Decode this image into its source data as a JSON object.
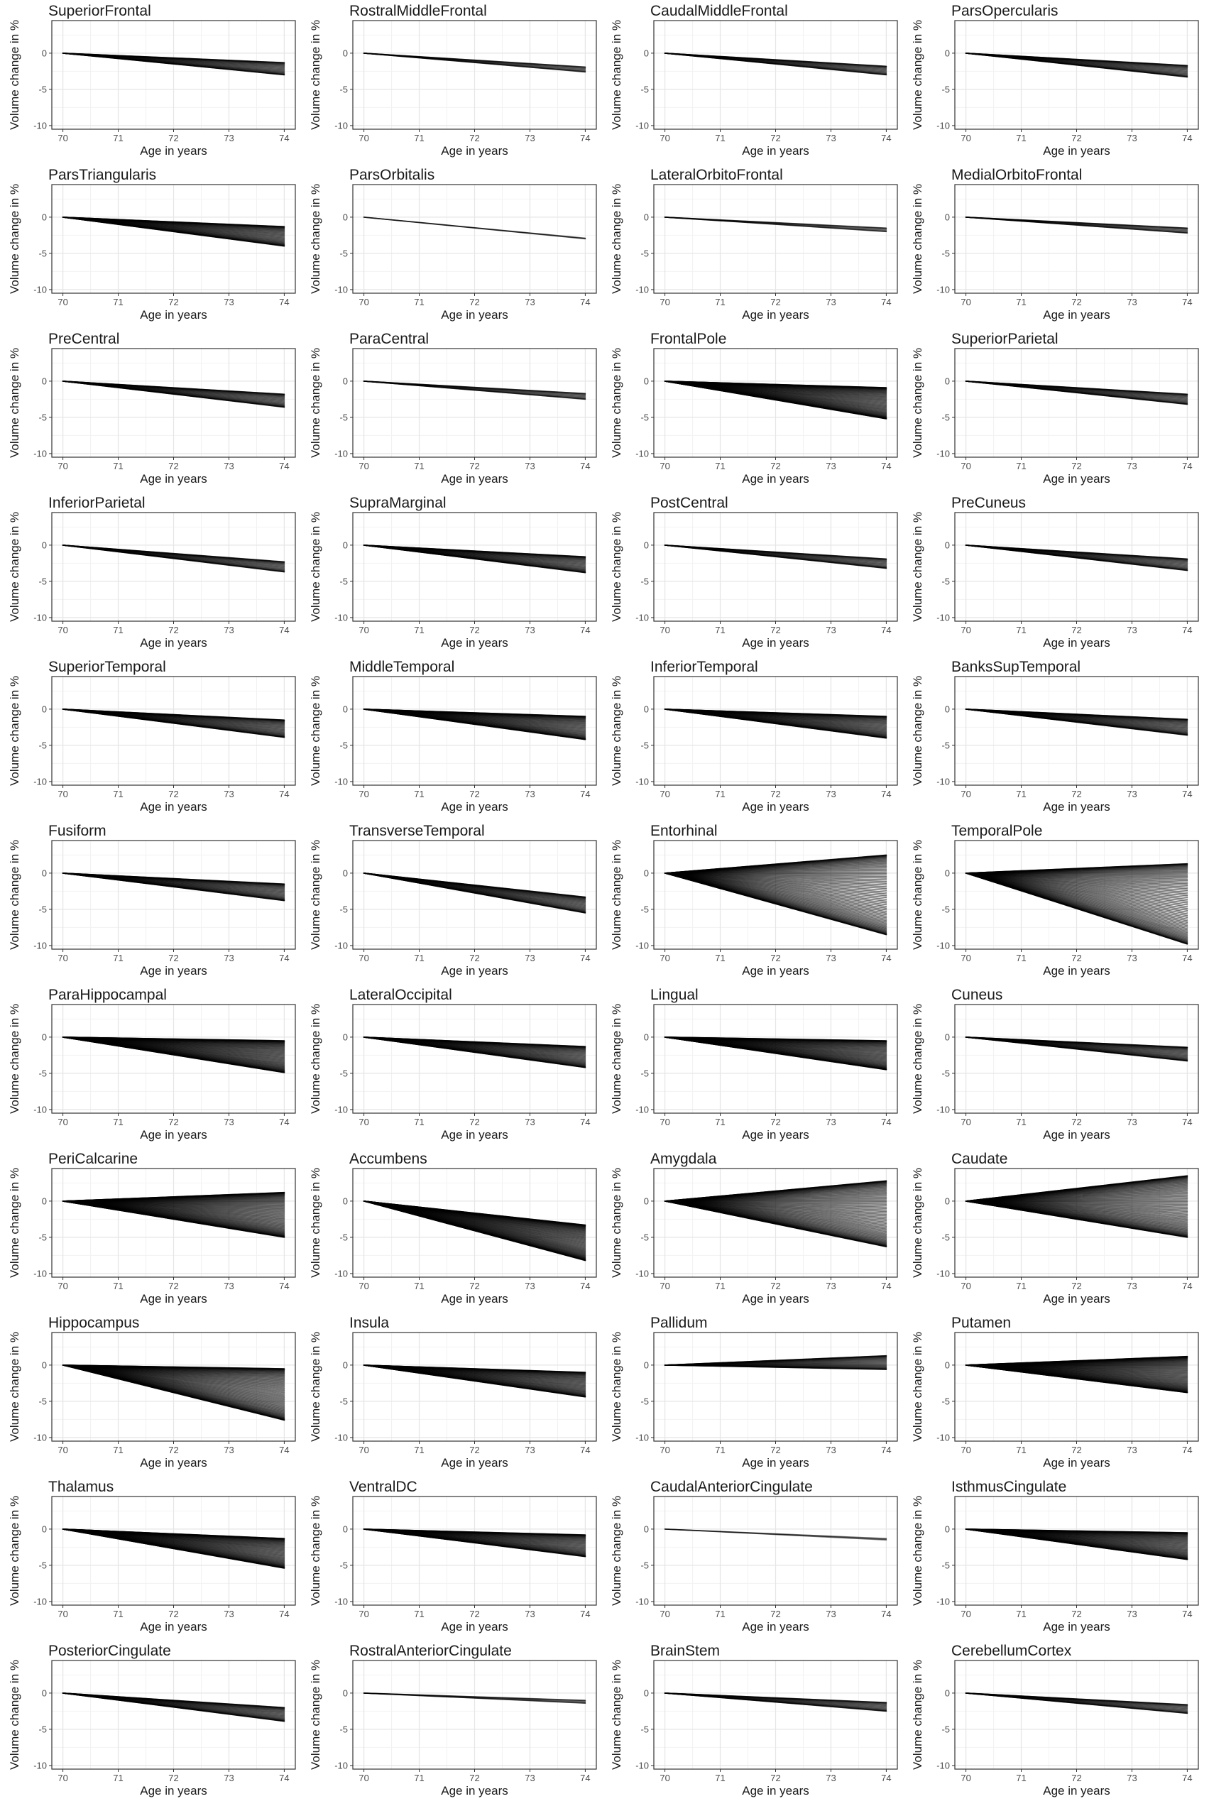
{
  "common": {
    "xlabel": "Age in years",
    "ylabel": "Volume change in %",
    "xticks": [
      70,
      71,
      72,
      73,
      74
    ],
    "yticks": [
      -10,
      -5,
      0
    ],
    "xlim": [
      69.8,
      74.2
    ],
    "ylim": [
      -10.5,
      4.5
    ],
    "grid": true,
    "line_color": "#000000",
    "panel_border": "#333333",
    "grid_major": "#e6e6e6",
    "grid_minor": "#f2f2f2"
  },
  "chart_data": [
    {
      "type": "line",
      "title": "SuperiorFrontal",
      "x": [
        70,
        74
      ],
      "end_range": [
        -3.0,
        -1.3
      ]
    },
    {
      "type": "line",
      "title": "RostralMiddleFrontal",
      "x": [
        70,
        74
      ],
      "end_range": [
        -2.6,
        -1.9
      ]
    },
    {
      "type": "line",
      "title": "CaudalMiddleFrontal",
      "x": [
        70,
        74
      ],
      "end_range": [
        -3.0,
        -1.8
      ]
    },
    {
      "type": "line",
      "title": "ParsOpercularis",
      "x": [
        70,
        74
      ],
      "end_range": [
        -3.3,
        -1.7
      ]
    },
    {
      "type": "line",
      "title": "ParsTriangularis",
      "x": [
        70,
        74
      ],
      "end_range": [
        -4.0,
        -1.3
      ]
    },
    {
      "type": "line",
      "title": "ParsOrbitalis",
      "x": [
        70,
        74
      ],
      "end_range": [
        -3.0,
        -2.9
      ]
    },
    {
      "type": "line",
      "title": "LateralOrbitoFrontal",
      "x": [
        70,
        74
      ],
      "end_range": [
        -2.0,
        -1.5
      ]
    },
    {
      "type": "line",
      "title": "MedialOrbitoFrontal",
      "x": [
        70,
        74
      ],
      "end_range": [
        -2.2,
        -1.5
      ]
    },
    {
      "type": "line",
      "title": "PreCentral",
      "x": [
        70,
        74
      ],
      "end_range": [
        -3.6,
        -1.8
      ]
    },
    {
      "type": "line",
      "title": "ParaCentral",
      "x": [
        70,
        74
      ],
      "end_range": [
        -2.5,
        -1.7
      ]
    },
    {
      "type": "line",
      "title": "FrontalPole",
      "x": [
        70,
        74
      ],
      "end_range": [
        -5.2,
        -0.9
      ]
    },
    {
      "type": "line",
      "title": "SuperiorParietal",
      "x": [
        70,
        74
      ],
      "end_range": [
        -3.2,
        -1.8
      ]
    },
    {
      "type": "line",
      "title": "InferiorParietal",
      "x": [
        70,
        74
      ],
      "end_range": [
        -3.7,
        -2.3
      ]
    },
    {
      "type": "line",
      "title": "SupraMarginal",
      "x": [
        70,
        74
      ],
      "end_range": [
        -3.8,
        -1.6
      ]
    },
    {
      "type": "line",
      "title": "PostCentral",
      "x": [
        70,
        74
      ],
      "end_range": [
        -3.2,
        -1.9
      ]
    },
    {
      "type": "line",
      "title": "PreCuneus",
      "x": [
        70,
        74
      ],
      "end_range": [
        -3.5,
        -1.9
      ]
    },
    {
      "type": "line",
      "title": "SuperiorTemporal",
      "x": [
        70,
        74
      ],
      "end_range": [
        -3.9,
        -1.5
      ]
    },
    {
      "type": "line",
      "title": "MiddleTemporal",
      "x": [
        70,
        74
      ],
      "end_range": [
        -4.2,
        -1.0
      ]
    },
    {
      "type": "line",
      "title": "InferiorTemporal",
      "x": [
        70,
        74
      ],
      "end_range": [
        -4.0,
        -1.0
      ]
    },
    {
      "type": "line",
      "title": "BanksSupTemporal",
      "x": [
        70,
        74
      ],
      "end_range": [
        -3.6,
        -1.4
      ]
    },
    {
      "type": "line",
      "title": "Fusiform",
      "x": [
        70,
        74
      ],
      "end_range": [
        -3.8,
        -1.5
      ]
    },
    {
      "type": "line",
      "title": "TransverseTemporal",
      "x": [
        70,
        74
      ],
      "end_range": [
        -5.5,
        -3.3
      ]
    },
    {
      "type": "line",
      "title": "Entorhinal",
      "x": [
        70,
        74
      ],
      "end_range": [
        -8.5,
        2.5
      ]
    },
    {
      "type": "line",
      "title": "TemporalPole",
      "x": [
        70,
        74
      ],
      "end_range": [
        -9.8,
        1.3
      ]
    },
    {
      "type": "line",
      "title": "ParaHippocampal",
      "x": [
        70,
        74
      ],
      "end_range": [
        -4.9,
        -0.5
      ]
    },
    {
      "type": "line",
      "title": "LateralOccipital",
      "x": [
        70,
        74
      ],
      "end_range": [
        -4.2,
        -1.3
      ]
    },
    {
      "type": "line",
      "title": "Lingual",
      "x": [
        70,
        74
      ],
      "end_range": [
        -4.5,
        -0.5
      ]
    },
    {
      "type": "line",
      "title": "Cuneus",
      "x": [
        70,
        74
      ],
      "end_range": [
        -3.3,
        -1.4
      ]
    },
    {
      "type": "line",
      "title": "PeriCalcarine",
      "x": [
        70,
        74
      ],
      "end_range": [
        -5.0,
        1.2
      ]
    },
    {
      "type": "line",
      "title": "Accumbens",
      "x": [
        70,
        74
      ],
      "end_range": [
        -8.2,
        -3.3
      ]
    },
    {
      "type": "line",
      "title": "Amygdala",
      "x": [
        70,
        74
      ],
      "end_range": [
        -6.3,
        2.8
      ]
    },
    {
      "type": "line",
      "title": "Caudate",
      "x": [
        70,
        74
      ],
      "end_range": [
        -5.0,
        3.5
      ]
    },
    {
      "type": "line",
      "title": "Hippocampus",
      "x": [
        70,
        74
      ],
      "end_range": [
        -7.6,
        -0.5
      ]
    },
    {
      "type": "line",
      "title": "Insula",
      "x": [
        70,
        74
      ],
      "end_range": [
        -4.4,
        -1.0
      ]
    },
    {
      "type": "line",
      "title": "Pallidum",
      "x": [
        70,
        74
      ],
      "end_range": [
        -0.6,
        1.3
      ]
    },
    {
      "type": "line",
      "title": "Putamen",
      "x": [
        70,
        74
      ],
      "end_range": [
        -3.8,
        1.2
      ]
    },
    {
      "type": "line",
      "title": "Thalamus",
      "x": [
        70,
        74
      ],
      "end_range": [
        -5.4,
        -1.3
      ]
    },
    {
      "type": "line",
      "title": "VentralDC",
      "x": [
        70,
        74
      ],
      "end_range": [
        -3.8,
        -0.8
      ]
    },
    {
      "type": "line",
      "title": "CaudalAnteriorCingulate",
      "x": [
        70,
        74
      ],
      "end_range": [
        -1.5,
        -1.3
      ]
    },
    {
      "type": "line",
      "title": "IsthmusCingulate",
      "x": [
        70,
        74
      ],
      "end_range": [
        -4.2,
        -0.5
      ]
    },
    {
      "type": "line",
      "title": "PosteriorCingulate",
      "x": [
        70,
        74
      ],
      "end_range": [
        -3.9,
        -2.0
      ]
    },
    {
      "type": "line",
      "title": "RostralAnteriorCingulate",
      "x": [
        70,
        74
      ],
      "end_range": [
        -1.4,
        -1.0
      ]
    },
    {
      "type": "line",
      "title": "BrainStem",
      "x": [
        70,
        74
      ],
      "end_range": [
        -2.5,
        -1.3
      ]
    },
    {
      "type": "line",
      "title": "CerebellumCortex",
      "x": [
        70,
        74
      ],
      "end_range": [
        -2.8,
        -1.6
      ]
    }
  ]
}
